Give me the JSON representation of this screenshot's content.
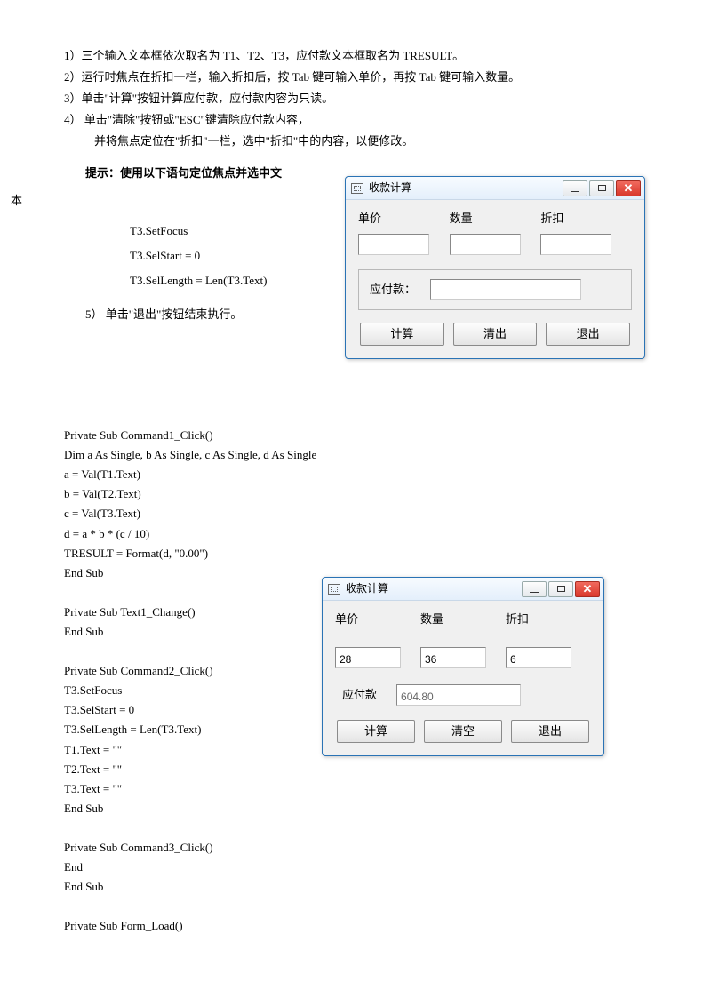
{
  "list": {
    "item1": "1）三个输入文本框依次取名为 T1、T2、T3，应付款文本框取名为 TRESULT。",
    "item2": "2）运行时焦点在折扣一栏，输入折扣后，按 Tab 键可输入单价，再按 Tab 键可输入数量。",
    "item3": "3）单击\"计算\"按钮计算应付款，应付款内容为只读。",
    "item4a": "4） 单击\"清除\"按钮或\"ESC\"键清除应付款内容，",
    "item4b": "并将焦点定位在\"折扣\"一栏，选中\"折扣\"中的内容，以便修改。",
    "item5": "5） 单击\"退出\"按钮结束执行。"
  },
  "hint": "提示：使用以下语句定位焦点并选中文",
  "ben": "本",
  "snippet": {
    "l1": "T3.SetFocus",
    "l2": "T3.SelStart = 0",
    "l3": "T3.SelLength = Len(T3.Text)"
  },
  "win1": {
    "title": "收款计算",
    "labels": {
      "price": "单价",
      "qty": "数量",
      "disc": "折扣",
      "result": "应付款："
    },
    "buttons": {
      "calc": "计算",
      "clear": "清出",
      "exit": "退出"
    },
    "v_price": "",
    "v_qty": "",
    "v_disc": "",
    "v_result": ""
  },
  "win2": {
    "title": "收款计算",
    "labels": {
      "price": "单价",
      "qty": "数量",
      "disc": "折扣",
      "result": "应付款"
    },
    "buttons": {
      "calc": "计算",
      "clear": "清空",
      "exit": "退出"
    },
    "v_price": "28",
    "v_qty": "36",
    "v_disc": "6",
    "v_result": "604.80"
  },
  "code": [
    "Private Sub Command1_Click()",
    "Dim a As Single, b As Single, c As Single, d As Single",
    "a = Val(T1.Text)",
    "b = Val(T2.Text)",
    "c = Val(T3.Text)",
    "d = a * b * (c / 10)",
    "TRESULT = Format(d, \"0.00\")",
    "End Sub",
    "",
    "Private Sub Text1_Change()",
    "End Sub",
    "",
    "Private Sub Command2_Click()",
    "T3.SetFocus",
    "T3.SelStart = 0",
    "T3.SelLength = Len(T3.Text)",
    "T1.Text = \"\"",
    "T2.Text = \"\"",
    "T3.Text = \"\"",
    "End Sub",
    "",
    "Private Sub Command3_Click()",
    "End",
    "End Sub",
    "",
    "Private Sub Form_Load()"
  ]
}
